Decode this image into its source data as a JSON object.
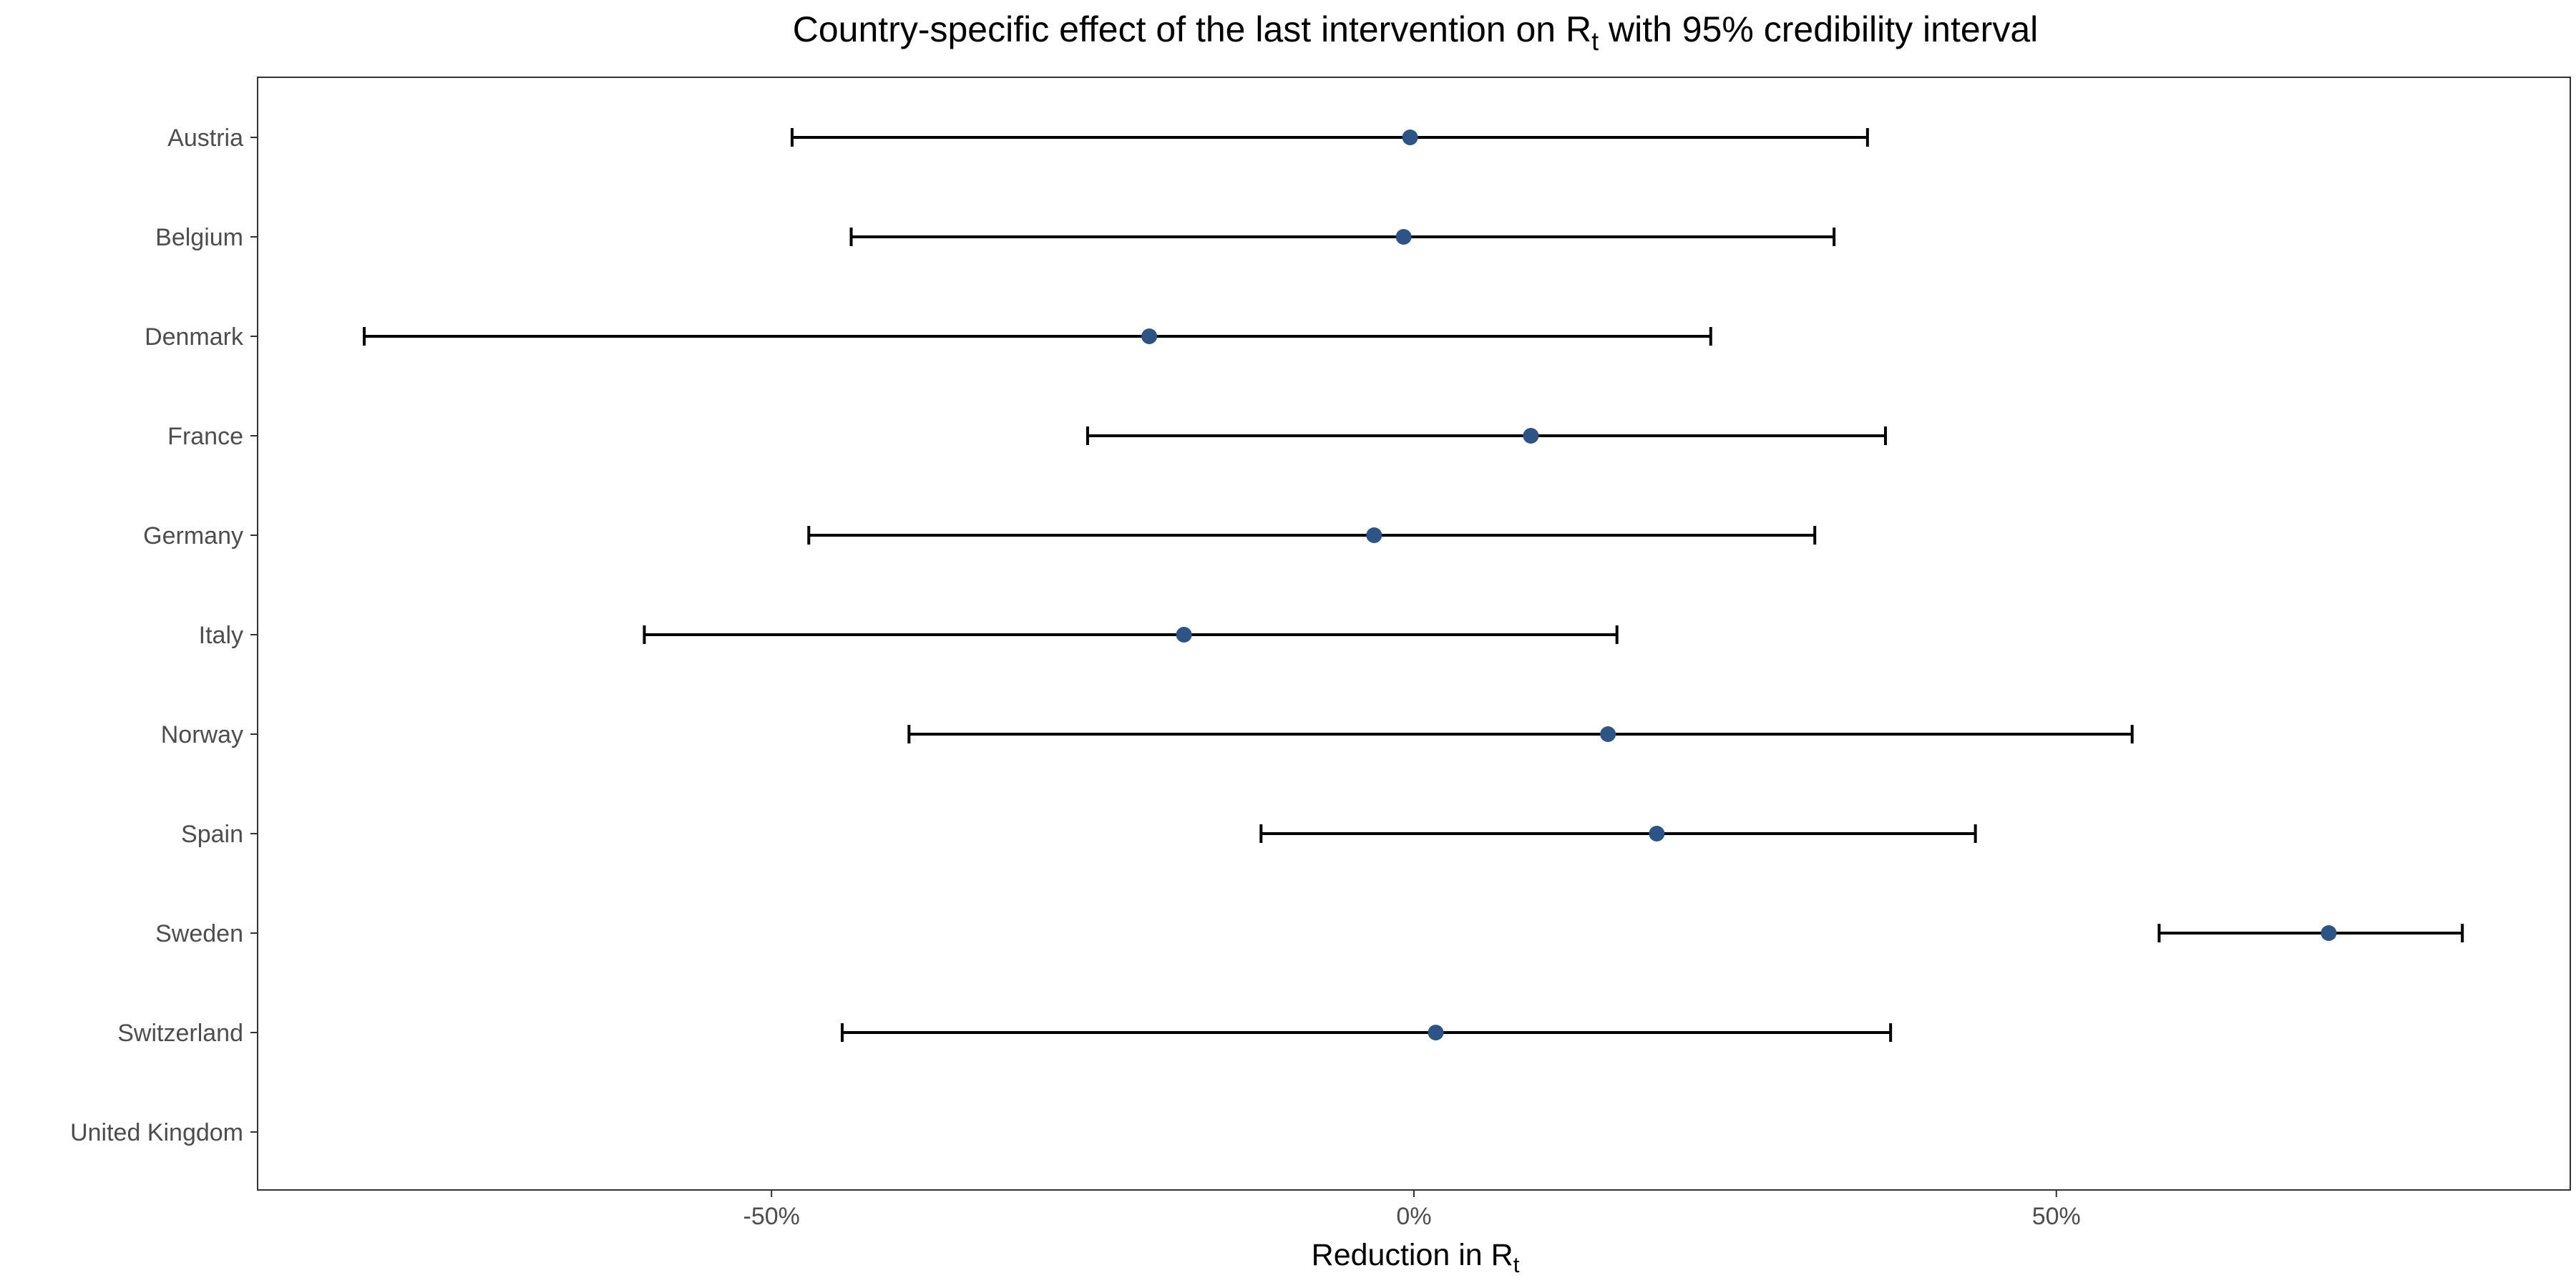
{
  "chart_data": {
    "type": "forest",
    "title": {
      "prefix": "Country-specific effect of the last intervention on R",
      "subscript": "t",
      "suffix": " with 95% credibility interval"
    },
    "xlabel": {
      "prefix": "Reduction in R",
      "subscript": "t"
    },
    "x_range_percent": [
      -90,
      90
    ],
    "x_ticks": [
      {
        "value": -50,
        "label": "-50%"
      },
      {
        "value": 0,
        "label": "0%"
      },
      {
        "value": 50,
        "label": "50%"
      }
    ],
    "grid": false,
    "categories": [
      "Austria",
      "Belgium",
      "Denmark",
      "France",
      "Germany",
      "Italy",
      "Norway",
      "Spain",
      "Sweden",
      "Switzerland",
      "United Kingdom"
    ],
    "estimates": [
      {
        "country": "Austria",
        "mean": -0.3,
        "lower": -48.4,
        "upper": 35.3
      },
      {
        "country": "Belgium",
        "mean": -0.8,
        "lower": -43.8,
        "upper": 32.7
      },
      {
        "country": "Denmark",
        "mean": -20.6,
        "lower": -81.7,
        "upper": 23.1
      },
      {
        "country": "France",
        "mean": 9.1,
        "lower": -25.4,
        "upper": 36.7
      },
      {
        "country": "Germany",
        "mean": -3.1,
        "lower": -47.1,
        "upper": 31.2
      },
      {
        "country": "Italy",
        "mean": -17.9,
        "lower": -59.9,
        "upper": 15.8
      },
      {
        "country": "Norway",
        "mean": 15.1,
        "lower": -39.3,
        "upper": 55.9
      },
      {
        "country": "Spain",
        "mean": 18.9,
        "lower": -11.9,
        "upper": 43.7
      },
      {
        "country": "Sweden",
        "mean": 71.2,
        "lower": 58.0,
        "upper": 81.6
      },
      {
        "country": "Switzerland",
        "mean": 1.7,
        "lower": -44.5,
        "upper": 37.1
      },
      {
        "country": "United Kingdom",
        "mean": null,
        "lower": null,
        "upper": null
      }
    ],
    "colors": {
      "point": "#2e5385",
      "interval": "#000000",
      "axis_text": "#4d4d4d",
      "panel_border": "#333333"
    }
  }
}
